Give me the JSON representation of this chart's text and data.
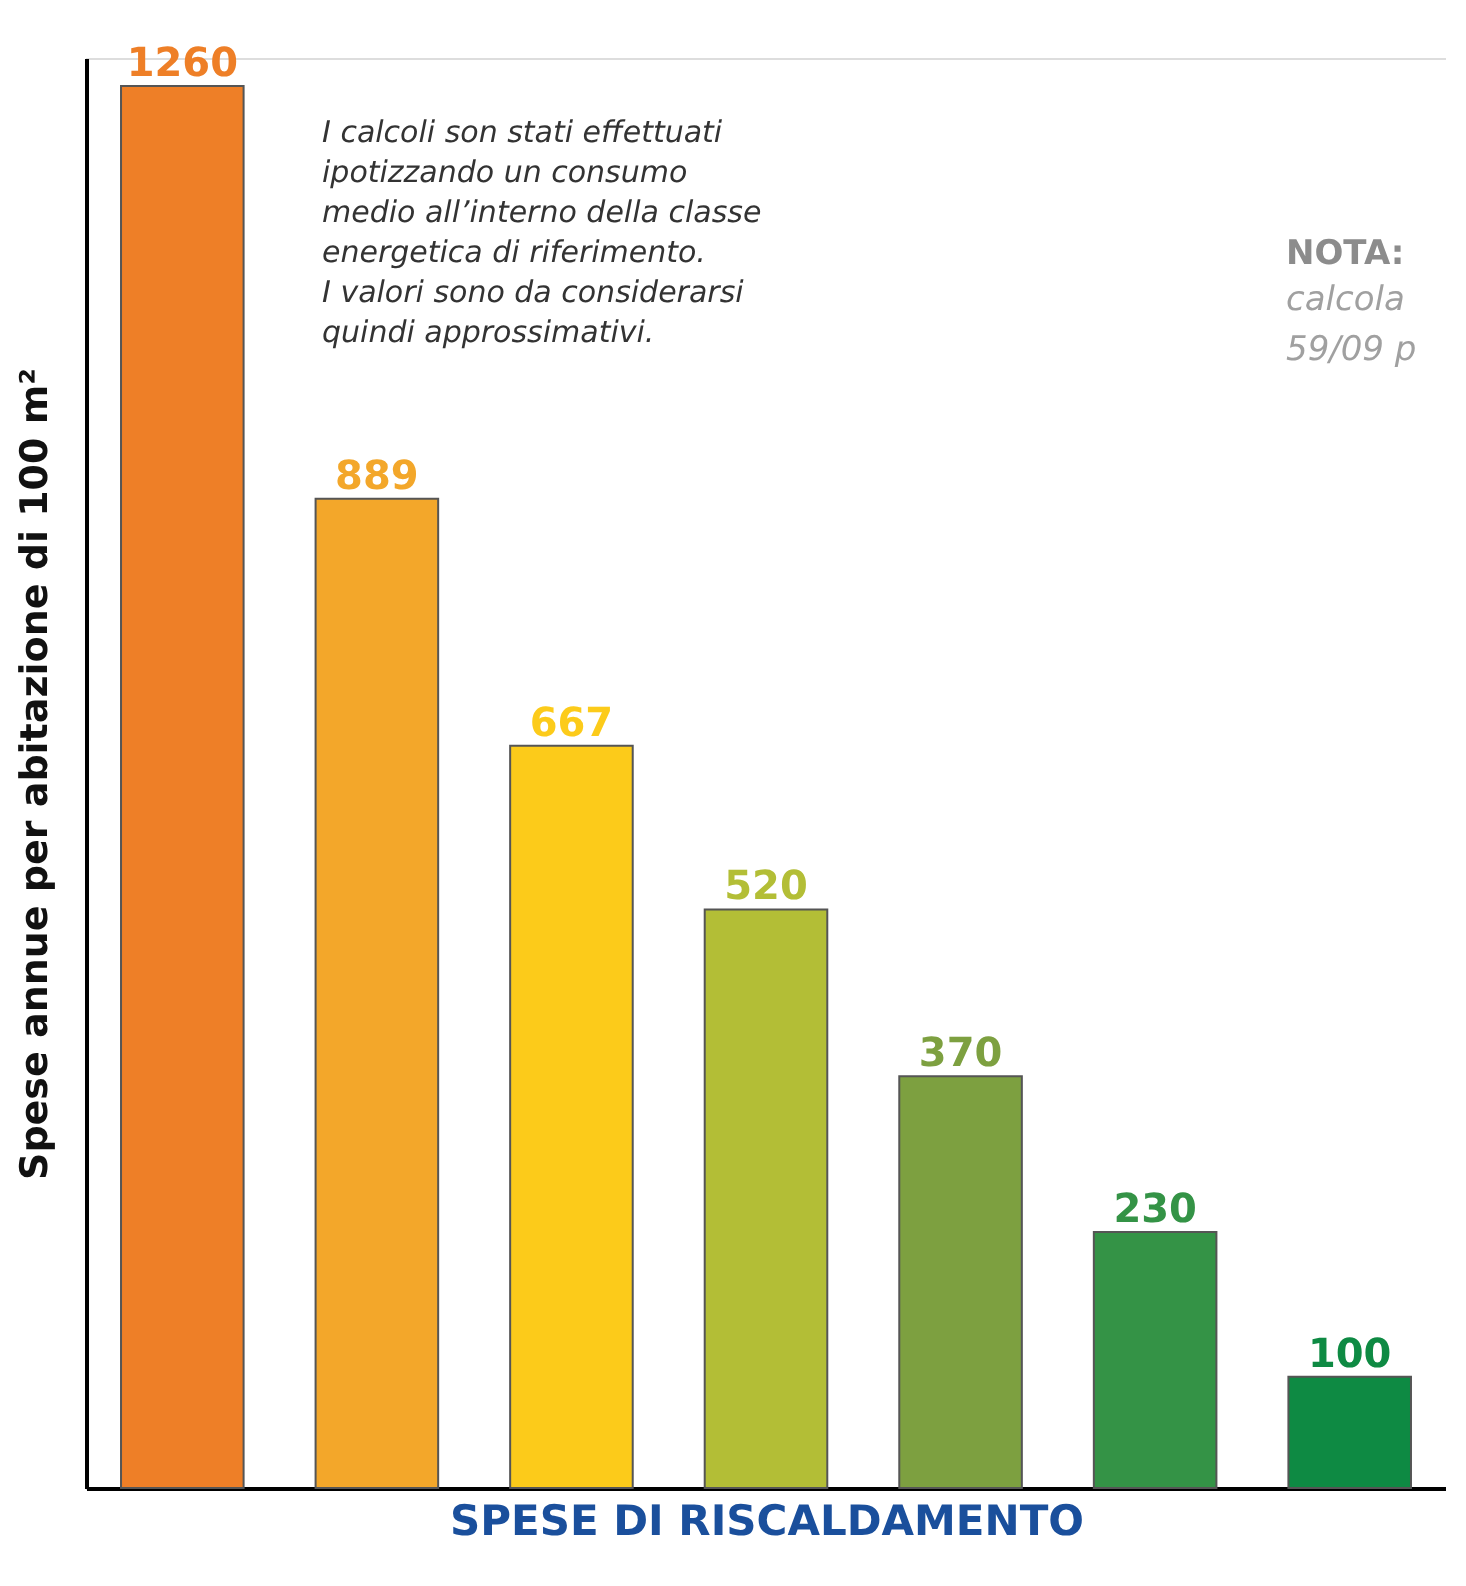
{
  "chart_data": {
    "type": "bar",
    "xlabel": "SPESE DI RISCALDAMENTO",
    "ylabel": "Spese annue per abitazione di 100 m²",
    "categories": [
      null,
      null,
      null,
      null,
      null,
      null,
      null
    ],
    "values": [
      1260,
      889,
      667,
      520,
      370,
      230,
      100
    ],
    "colors": [
      "#ee7f27",
      "#f3a72a",
      "#fccb1a",
      "#b3be36",
      "#7da040",
      "#349346",
      "#0e8a43"
    ],
    "tick_labels": false,
    "data_labels": true,
    "annotations": [
      "I calcoli son stati effettuati\nipotizzando un consumo\nmedio all’interno della classe\nenergetica di riferimento.\nI valori sono da considerarsi\nquindi approssimativi.",
      "NOTA:",
      "calcola",
      "59/09 p"
    ]
  }
}
